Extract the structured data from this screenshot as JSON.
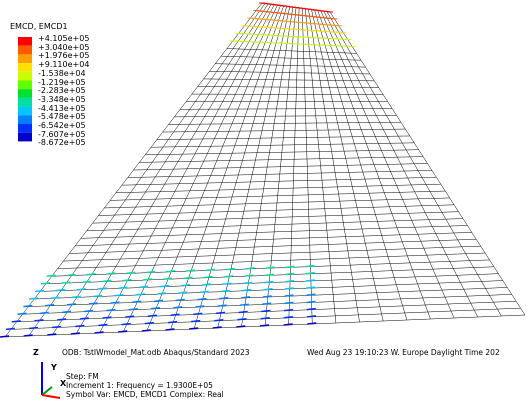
{
  "legend": {
    "title": "EMCD, EMCD1",
    "labels": [
      "+4.105e+05",
      "+3.040e+05",
      "+1.976e+05",
      "+9.110e+04",
      "-1.538e+04",
      "-1.219e+05",
      "-2.283e+05",
      "-3.348e+05",
      "-4.413e+05",
      "-5.478e+05",
      "-6.542e+05",
      "-7.607e+05",
      "-8.672e+05"
    ],
    "colors": [
      "#ff0000",
      "#ff5a00",
      "#ffa000",
      "#ffe000",
      "#c8ff00",
      "#60ff00",
      "#00e030",
      "#00e0a0",
      "#00c8ff",
      "#0080ff",
      "#0030ff",
      "#0000c8"
    ]
  },
  "info": {
    "odb": "ODB: TstIWmodel_Mat.odb    Abaqus/Standard 2023",
    "date": "Wed Aug 23 19:10:23 W. Europe Daylight Time 202",
    "step": "Step: FM",
    "increment": "Increment    1: Frequency =   1.9300E+05",
    "symbol": "Symbol Var: EMCD, EMCD1   Complex: Real"
  },
  "triad": {
    "z": "Z",
    "y": "Y",
    "x": "X"
  }
}
